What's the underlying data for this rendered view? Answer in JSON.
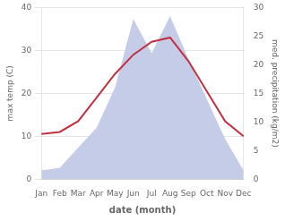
{
  "chart_data": {
    "type": "line",
    "categories": [
      "Jan",
      "Feb",
      "Mar",
      "Apr",
      "May",
      "Jun",
      "Jul",
      "Aug",
      "Sep",
      "Oct",
      "Nov",
      "Dec"
    ],
    "series": [
      {
        "type": "line",
        "color": "#c03040",
        "values": [
          10.5,
          11.0,
          13.5,
          19.0,
          24.5,
          29.0,
          32.0,
          33.0,
          27.5,
          20.5,
          13.5,
          10.0
        ]
      },
      {
        "type": "area",
        "axis": "y2",
        "color": "#c5cce8",
        "values": [
          1.5,
          2.0,
          5.5,
          9.0,
          16.0,
          28.0,
          22.0,
          28.5,
          21.0,
          14.0,
          7.0,
          1.5
        ]
      }
    ],
    "xlabel": "date (month)",
    "ylabel": "max temp (C)",
    "y2label": "med. precipitation (kg/m2)",
    "ylim": [
      0,
      40
    ],
    "yticks": [
      0,
      10,
      20,
      30,
      40
    ],
    "y2lim": [
      0,
      30
    ],
    "y2ticks": [
      0,
      5,
      10,
      15,
      20,
      25,
      30
    ],
    "grid": true
  }
}
